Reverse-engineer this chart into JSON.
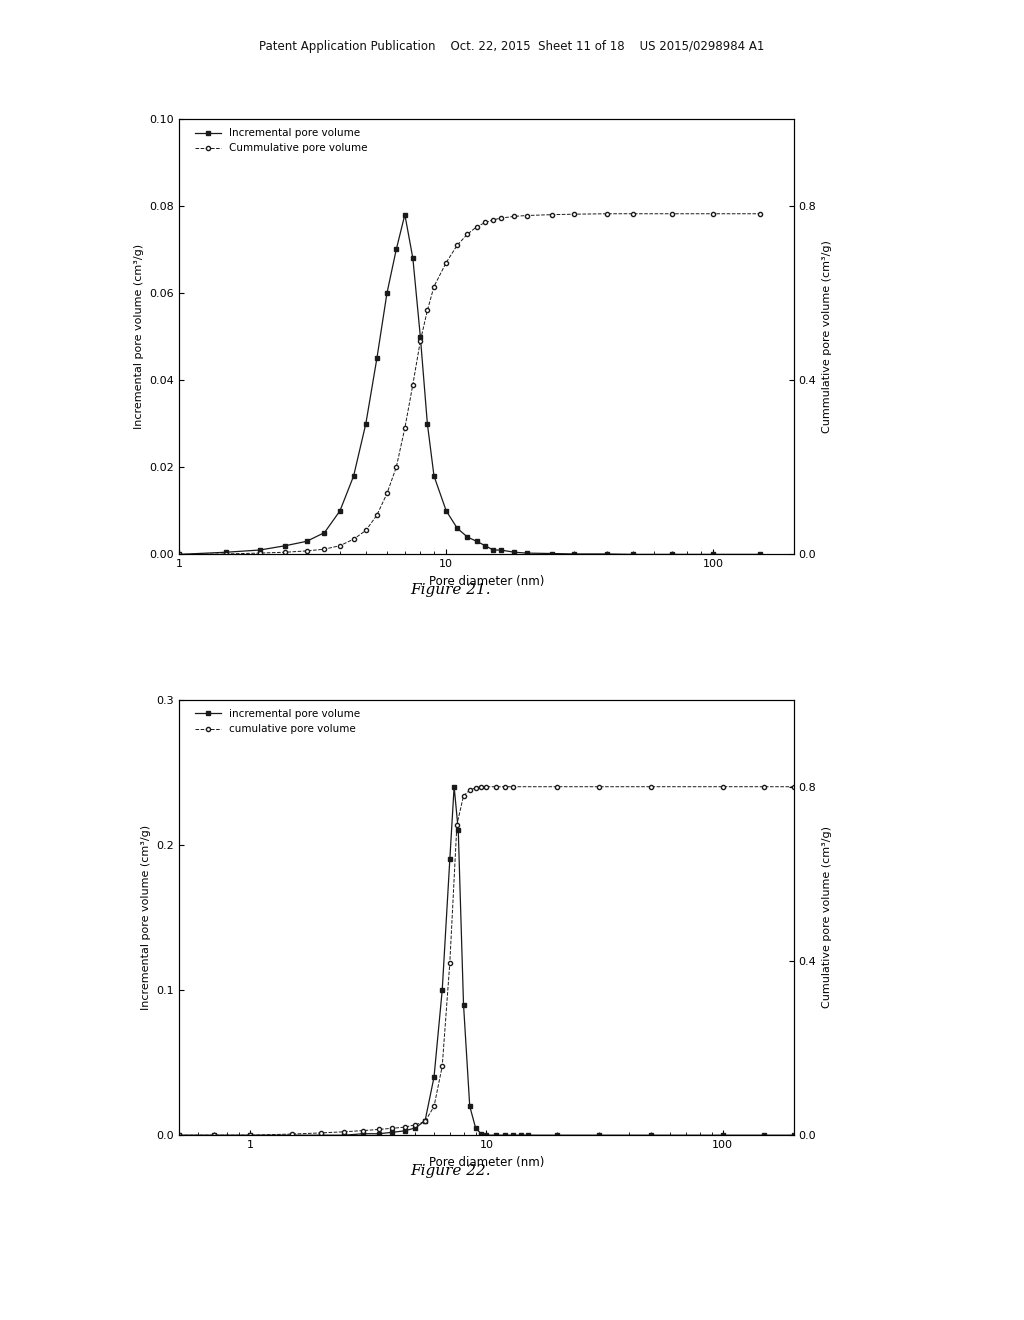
{
  "fig1": {
    "title": "Figure 21.",
    "xlabel": "Pore diameter (nm)",
    "ylabel_left": "Incremental pore volume (cm³/g)",
    "ylabel_right": "Cummulative pore volume (cm³/g)",
    "legend_inc": "Incremental pore volume",
    "legend_cum": "Cummulative pore volume",
    "ylim_left": [
      0,
      0.1
    ],
    "ylim_right": [
      0,
      1.0
    ],
    "yticks_left": [
      0.0,
      0.02,
      0.04,
      0.06,
      0.08,
      0.1
    ],
    "yticks_right_vals": [
      0.0,
      0.4,
      0.8
    ],
    "yticks_right_labels": [
      "0.0",
      "0.4",
      "0.8"
    ],
    "xlim": [
      1,
      200
    ],
    "xticks": [
      1,
      10,
      100
    ],
    "inc_x": [
      1.0,
      1.5,
      2.0,
      2.5,
      3.0,
      3.5,
      4.0,
      4.5,
      5.0,
      5.5,
      6.0,
      6.5,
      7.0,
      7.5,
      8.0,
      8.5,
      9.0,
      10.0,
      11.0,
      12.0,
      13.0,
      14.0,
      15.0,
      16.0,
      18.0,
      20.0,
      25.0,
      30.0,
      40.0,
      50.0,
      70.0,
      100.0,
      150.0
    ],
    "inc_y": [
      0.0,
      0.0005,
      0.001,
      0.002,
      0.003,
      0.005,
      0.01,
      0.018,
      0.03,
      0.045,
      0.06,
      0.07,
      0.078,
      0.068,
      0.05,
      0.03,
      0.018,
      0.01,
      0.006,
      0.004,
      0.003,
      0.002,
      0.001,
      0.001,
      0.0005,
      0.0003,
      0.0002,
      0.0001,
      0.0001,
      0.0,
      0.0,
      0.0,
      0.0
    ],
    "cum_x": [
      1.0,
      1.5,
      2.0,
      2.5,
      3.0,
      3.5,
      4.0,
      4.5,
      5.0,
      5.5,
      6.0,
      6.5,
      7.0,
      7.5,
      8.0,
      8.5,
      9.0,
      10.0,
      11.0,
      12.0,
      13.0,
      14.0,
      15.0,
      16.0,
      18.0,
      20.0,
      25.0,
      30.0,
      40.0,
      50.0,
      70.0,
      100.0,
      150.0
    ],
    "cum_y": [
      0.0,
      0.001,
      0.003,
      0.005,
      0.008,
      0.012,
      0.02,
      0.035,
      0.055,
      0.09,
      0.14,
      0.2,
      0.29,
      0.39,
      0.49,
      0.56,
      0.615,
      0.67,
      0.71,
      0.735,
      0.752,
      0.762,
      0.768,
      0.772,
      0.776,
      0.778,
      0.78,
      0.781,
      0.782,
      0.782,
      0.782,
      0.782,
      0.782
    ]
  },
  "fig2": {
    "title": "Figure 22.",
    "xlabel": "Pore diameter (nm)",
    "ylabel_left": "Incremental pore volume (cm³/g)",
    "ylabel_right": "Cumulative pore volume (cm³/g)",
    "legend_inc": "incremental pore volume",
    "legend_cum": "cumulative pore volume",
    "ylim_left": [
      0,
      0.3
    ],
    "ylim_right": [
      0,
      1.0
    ],
    "yticks_left": [
      0.0,
      0.1,
      0.2,
      0.3
    ],
    "yticks_right_vals": [
      0.0,
      0.4,
      0.8
    ],
    "yticks_right_labels": [
      "0.0",
      "0.4",
      "0.8"
    ],
    "xlim": [
      0.5,
      200
    ],
    "xticks": [
      1,
      10,
      100
    ],
    "inc_x": [
      0.5,
      0.7,
      1.0,
      1.5,
      2.0,
      2.5,
      3.0,
      3.5,
      4.0,
      4.5,
      5.0,
      5.5,
      6.0,
      6.5,
      7.0,
      7.3,
      7.6,
      8.0,
      8.5,
      9.0,
      9.5,
      10.0,
      11.0,
      12.0,
      13.0,
      14.0,
      15.0,
      20.0,
      30.0,
      50.0,
      100.0,
      150.0,
      200.0
    ],
    "inc_y": [
      0.0,
      0.0,
      0.0,
      0.0,
      0.0,
      0.0,
      0.001,
      0.001,
      0.002,
      0.003,
      0.005,
      0.01,
      0.04,
      0.1,
      0.19,
      0.24,
      0.21,
      0.09,
      0.02,
      0.005,
      0.001,
      0.0,
      0.0,
      0.0,
      0.0,
      0.0,
      0.0,
      0.0,
      0.0,
      0.0,
      0.0,
      0.0,
      0.0
    ],
    "cum_x": [
      0.5,
      0.7,
      1.0,
      1.5,
      2.0,
      2.5,
      3.0,
      3.5,
      4.0,
      4.5,
      5.0,
      5.5,
      6.0,
      6.5,
      7.0,
      7.5,
      8.0,
      8.5,
      9.0,
      9.5,
      10.0,
      11.0,
      12.0,
      13.0,
      20.0,
      30.0,
      50.0,
      100.0,
      150.0,
      200.0
    ],
    "cum_y": [
      0.0,
      0.0,
      0.0,
      0.001,
      0.002,
      0.003,
      0.004,
      0.005,
      0.006,
      0.007,
      0.009,
      0.012,
      0.025,
      0.06,
      0.15,
      0.27,
      0.295,
      0.3,
      0.302,
      0.303,
      0.303,
      0.303,
      0.303,
      0.303,
      0.303,
      0.303,
      0.303,
      0.303,
      0.303,
      0.303
    ]
  },
  "header_text": "Patent Application Publication    Oct. 22, 2015  Sheet 11 of 18    US 2015/0298984 A1",
  "bg_color": "#ffffff",
  "plot_bg": "#ffffff",
  "line_color": "#1a1a1a",
  "cum_line_color": "#1a1a1a"
}
